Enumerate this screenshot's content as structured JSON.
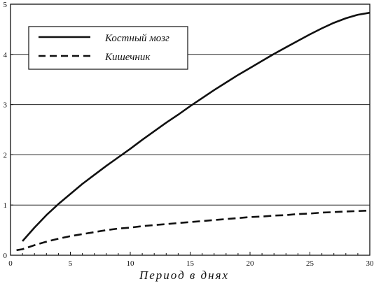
{
  "chart_data": {
    "type": "line",
    "title": "",
    "xlabel": "Период в днях",
    "ylabel": "",
    "xlim": [
      0,
      30
    ],
    "ylim": [
      0,
      5
    ],
    "xticks": [
      "0",
      "5",
      "10",
      "15",
      "20",
      "25",
      "30"
    ],
    "yticks": [
      "0",
      "1",
      "2",
      "3",
      "4",
      "5"
    ],
    "grid": "horizontal",
    "legend_position": "top-left",
    "series": [
      {
        "name": "Костный мозг",
        "style": "solid",
        "color": "#111111",
        "x": [
          1,
          2,
          3,
          4,
          5,
          6,
          7,
          8,
          9,
          10,
          11,
          12,
          13,
          14,
          15,
          16,
          17,
          18,
          19,
          20,
          21,
          22,
          23,
          24,
          25,
          26,
          27,
          28,
          29,
          30
        ],
        "y": [
          0.28,
          0.55,
          0.8,
          1.02,
          1.22,
          1.42,
          1.6,
          1.78,
          1.95,
          2.12,
          2.3,
          2.47,
          2.64,
          2.8,
          2.97,
          3.13,
          3.29,
          3.44,
          3.59,
          3.73,
          3.87,
          4.01,
          4.14,
          4.27,
          4.4,
          4.52,
          4.63,
          4.72,
          4.79,
          4.83
        ]
      },
      {
        "name": "Кишечник",
        "style": "dashed",
        "color": "#111111",
        "x": [
          0.5,
          1,
          2,
          3,
          4,
          5,
          6,
          7,
          8,
          9,
          10,
          11,
          12,
          13,
          14,
          15,
          16,
          17,
          18,
          19,
          20,
          21,
          22,
          23,
          24,
          25,
          26,
          27,
          28,
          29,
          30
        ],
        "y": [
          0.1,
          0.12,
          0.2,
          0.27,
          0.33,
          0.38,
          0.42,
          0.46,
          0.5,
          0.53,
          0.55,
          0.58,
          0.6,
          0.62,
          0.64,
          0.66,
          0.68,
          0.7,
          0.72,
          0.74,
          0.76,
          0.77,
          0.79,
          0.8,
          0.82,
          0.83,
          0.85,
          0.86,
          0.87,
          0.88,
          0.89
        ]
      }
    ]
  }
}
